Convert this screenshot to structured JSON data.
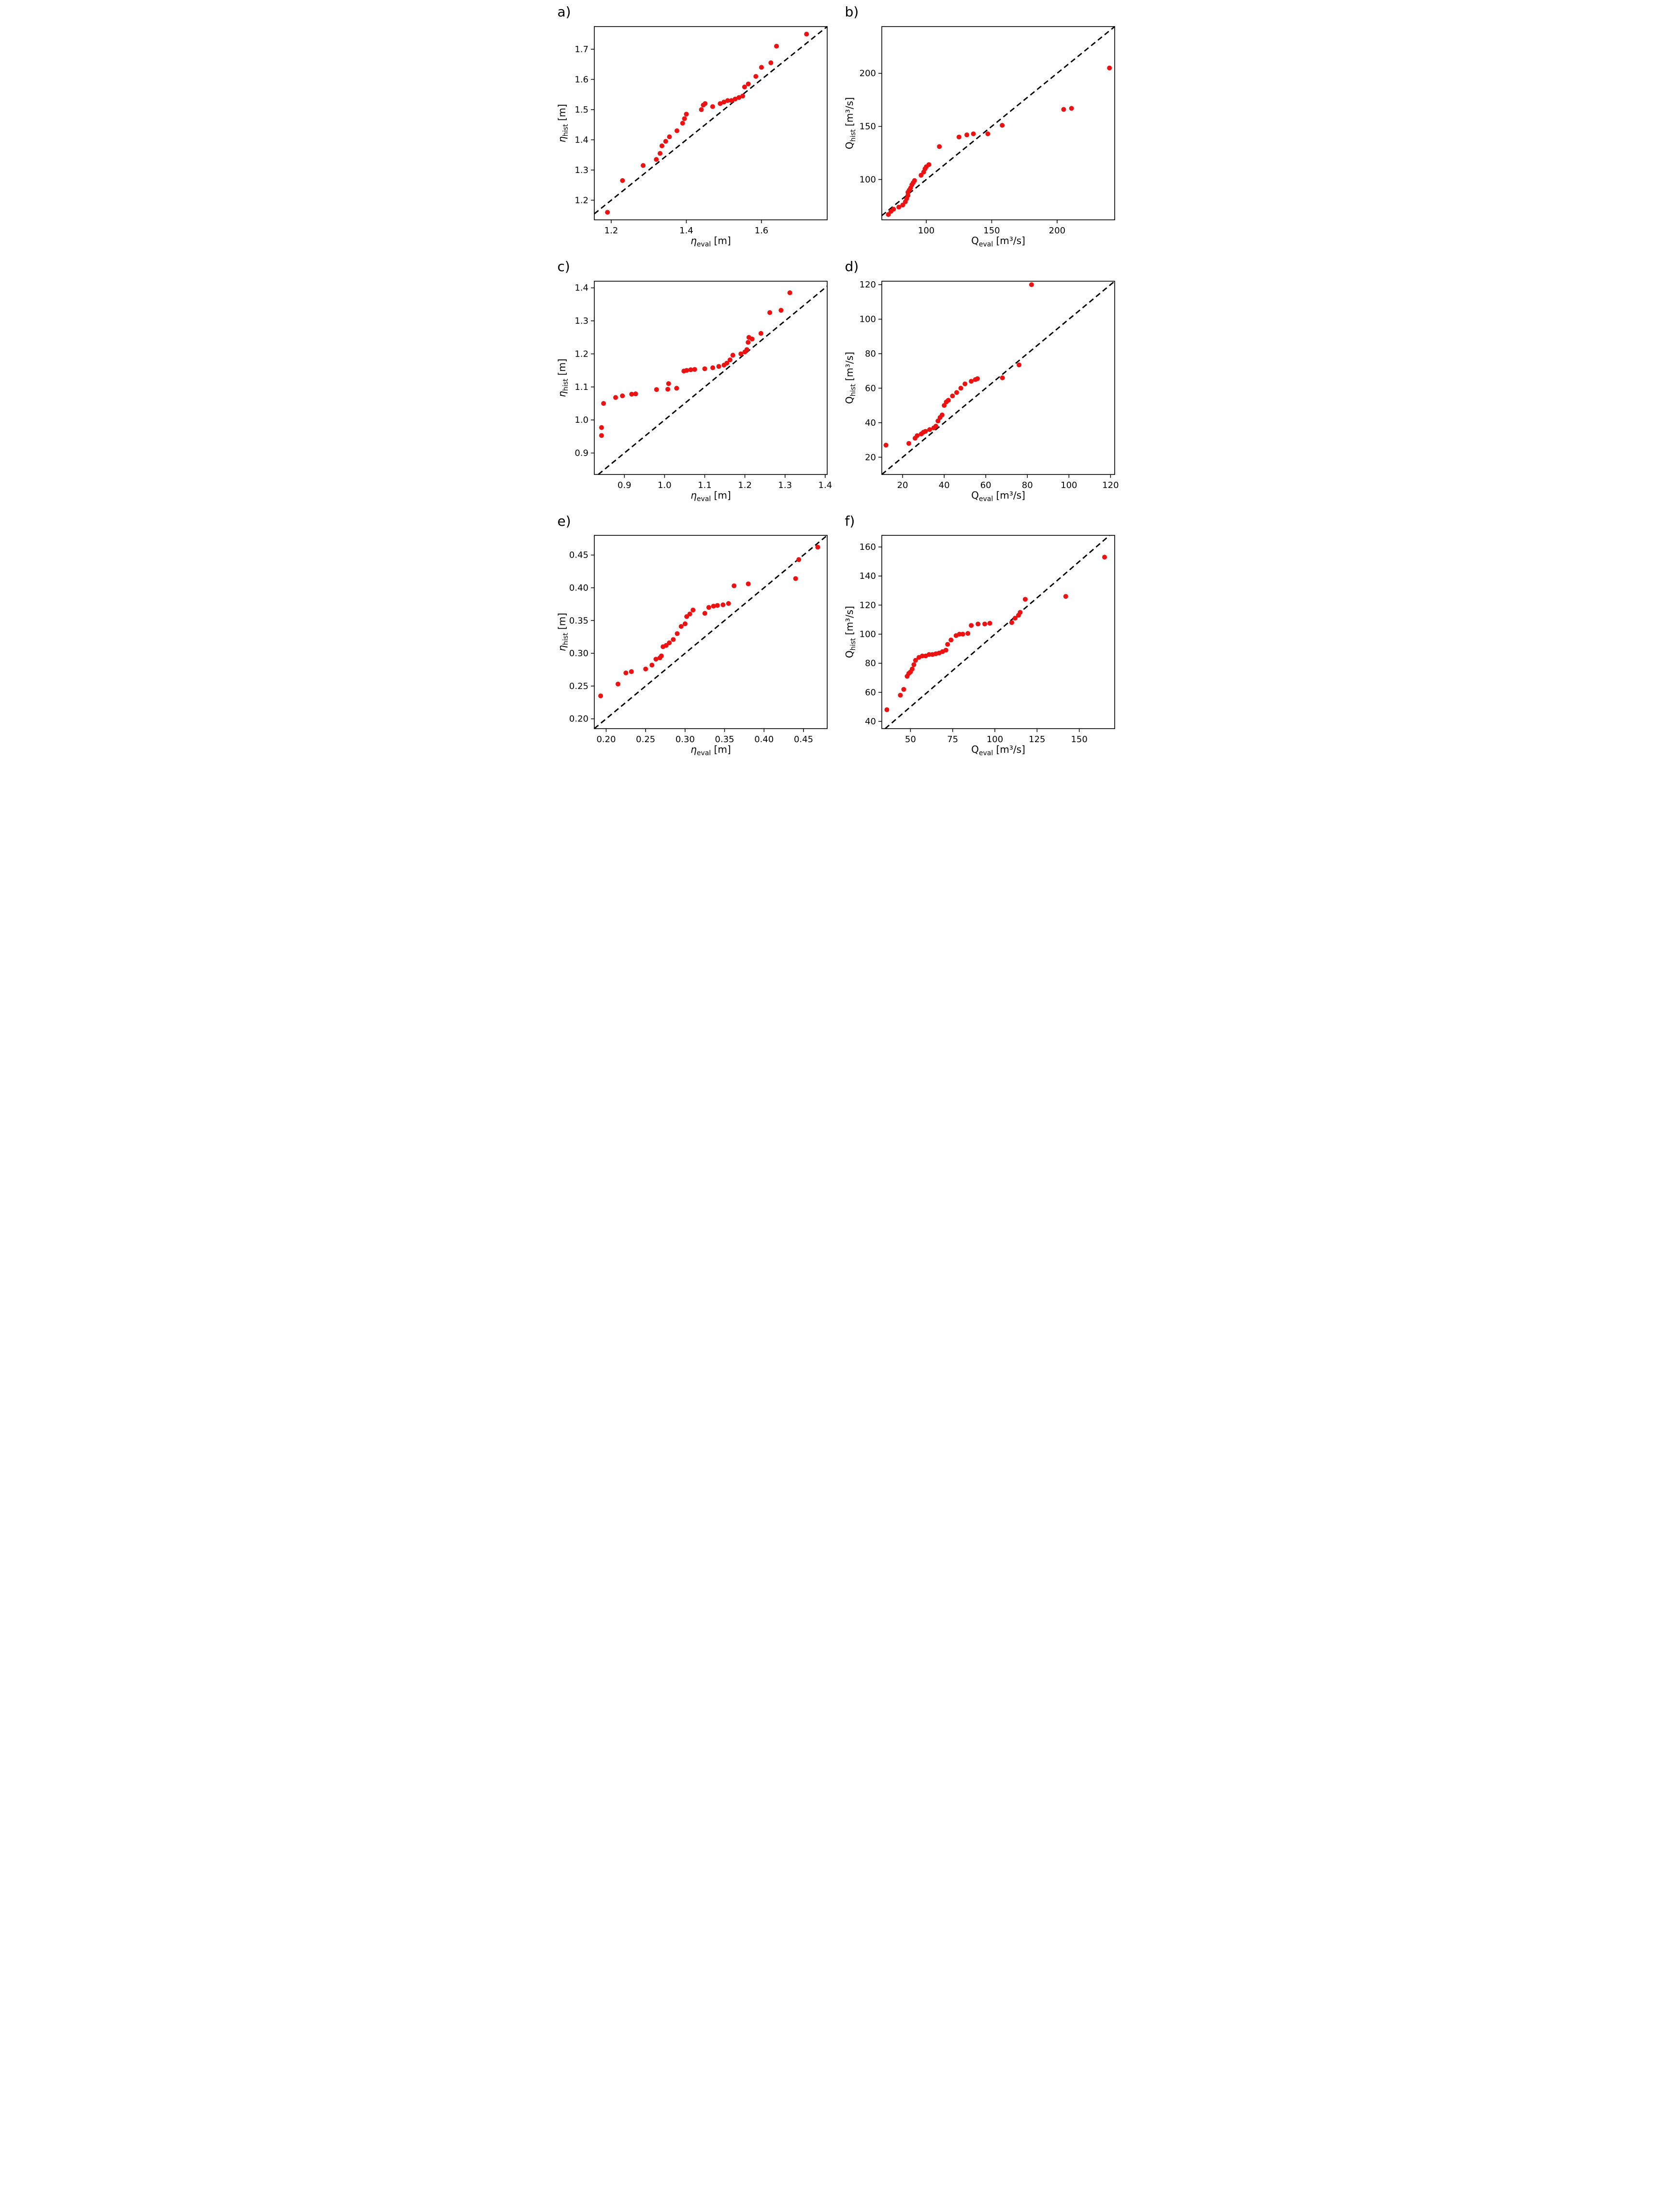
{
  "figure": {
    "background": "#ffffff",
    "point_color": "#ee1111",
    "line_color": "#000000"
  },
  "chart_data": [
    {
      "id": "a",
      "type": "scatter",
      "panel_label": "a)",
      "xlabel": {
        "var": "η",
        "var_italic": true,
        "sub": "eval",
        "unit": "[m]"
      },
      "ylabel": {
        "var": "η",
        "var_italic": true,
        "sub": "hist",
        "unit": "[m]"
      },
      "xlim": [
        1.155,
        1.775
      ],
      "ylim": [
        1.135,
        1.775
      ],
      "xtick_vals": [
        1.2,
        1.4,
        1.6
      ],
      "xtick_labels": [
        "1.2",
        "1.4",
        "1.6"
      ],
      "ytick_vals": [
        1.2,
        1.3,
        1.4,
        1.5,
        1.6,
        1.7
      ],
      "ytick_labels": [
        "1.2",
        "1.3",
        "1.4",
        "1.5",
        "1.6",
        "1.7"
      ],
      "identity_line": true,
      "points": [
        [
          1.19,
          1.16
        ],
        [
          1.23,
          1.265
        ],
        [
          1.285,
          1.315
        ],
        [
          1.32,
          1.335
        ],
        [
          1.33,
          1.355
        ],
        [
          1.335,
          1.38
        ],
        [
          1.345,
          1.395
        ],
        [
          1.355,
          1.41
        ],
        [
          1.375,
          1.43
        ],
        [
          1.39,
          1.455
        ],
        [
          1.395,
          1.47
        ],
        [
          1.4,
          1.485
        ],
        [
          1.44,
          1.5
        ],
        [
          1.445,
          1.515
        ],
        [
          1.45,
          1.52
        ],
        [
          1.47,
          1.51
        ],
        [
          1.49,
          1.52
        ],
        [
          1.5,
          1.525
        ],
        [
          1.51,
          1.53
        ],
        [
          1.52,
          1.53
        ],
        [
          1.53,
          1.535
        ],
        [
          1.54,
          1.54
        ],
        [
          1.55,
          1.545
        ],
        [
          1.555,
          1.575
        ],
        [
          1.565,
          1.585
        ],
        [
          1.585,
          1.61
        ],
        [
          1.6,
          1.64
        ],
        [
          1.625,
          1.655
        ],
        [
          1.64,
          1.71
        ],
        [
          1.72,
          1.75
        ]
      ]
    },
    {
      "id": "b",
      "type": "scatter",
      "panel_label": "b)",
      "xlabel": {
        "var": "Q",
        "var_italic": false,
        "sub": "eval",
        "unit": "[m³/s]"
      },
      "ylabel": {
        "var": "Q",
        "var_italic": false,
        "sub": "hist",
        "unit": "[m³/s]"
      },
      "xlim": [
        66,
        244
      ],
      "ylim": [
        62,
        244
      ],
      "xtick_vals": [
        100,
        150,
        200
      ],
      "xtick_labels": [
        "100",
        "150",
        "200"
      ],
      "ytick_vals": [
        100,
        150,
        200
      ],
      "ytick_labels": [
        "100",
        "150",
        "200"
      ],
      "identity_line": true,
      "points": [
        [
          71,
          67
        ],
        [
          73,
          70
        ],
        [
          75,
          72
        ],
        [
          79,
          74
        ],
        [
          82,
          76
        ],
        [
          84,
          79
        ],
        [
          85,
          82
        ],
        [
          86,
          85
        ],
        [
          86,
          88
        ],
        [
          87,
          90
        ],
        [
          88,
          92
        ],
        [
          89,
          95
        ],
        [
          90,
          97
        ],
        [
          91,
          99
        ],
        [
          96,
          104
        ],
        [
          98,
          107
        ],
        [
          99,
          110
        ],
        [
          100,
          112
        ],
        [
          102,
          114
        ],
        [
          110,
          131
        ],
        [
          125,
          140
        ],
        [
          131,
          142
        ],
        [
          136,
          143
        ],
        [
          147,
          143
        ],
        [
          158,
          151
        ],
        [
          205,
          166
        ],
        [
          211,
          167
        ],
        [
          240,
          205
        ]
      ]
    },
    {
      "id": "c",
      "type": "scatter",
      "panel_label": "c)",
      "xlabel": {
        "var": "η",
        "var_italic": true,
        "sub": "eval",
        "unit": "[m]"
      },
      "ylabel": {
        "var": "η",
        "var_italic": true,
        "sub": "hist",
        "unit": "[m]"
      },
      "xlim": [
        0.825,
        1.405
      ],
      "ylim": [
        0.835,
        1.42
      ],
      "xtick_vals": [
        0.9,
        1.0,
        1.1,
        1.2,
        1.3,
        1.4
      ],
      "xtick_labels": [
        "0.9",
        "1.0",
        "1.1",
        "1.2",
        "1.3",
        "1.4"
      ],
      "ytick_vals": [
        0.9,
        1.0,
        1.1,
        1.2,
        1.3,
        1.4
      ],
      "ytick_labels": [
        "0.9",
        "1.0",
        "1.1",
        "1.2",
        "1.3",
        "1.4"
      ],
      "identity_line": true,
      "points": [
        [
          0.843,
          0.953
        ],
        [
          0.843,
          0.977
        ],
        [
          0.848,
          1.05
        ],
        [
          0.878,
          1.068
        ],
        [
          0.895,
          1.073
        ],
        [
          0.918,
          1.078
        ],
        [
          0.928,
          1.079
        ],
        [
          0.98,
          1.092
        ],
        [
          1.008,
          1.093
        ],
        [
          1.01,
          1.11
        ],
        [
          1.03,
          1.096
        ],
        [
          1.048,
          1.148
        ],
        [
          1.055,
          1.15
        ],
        [
          1.065,
          1.152
        ],
        [
          1.075,
          1.153
        ],
        [
          1.1,
          1.155
        ],
        [
          1.12,
          1.158
        ],
        [
          1.135,
          1.162
        ],
        [
          1.148,
          1.166
        ],
        [
          1.155,
          1.172
        ],
        [
          1.163,
          1.182
        ],
        [
          1.17,
          1.196
        ],
        [
          1.19,
          1.2
        ],
        [
          1.2,
          1.206
        ],
        [
          1.205,
          1.213
        ],
        [
          1.208,
          1.235
        ],
        [
          1.21,
          1.25
        ],
        [
          1.218,
          1.245
        ],
        [
          1.24,
          1.262
        ],
        [
          1.262,
          1.325
        ],
        [
          1.29,
          1.332
        ],
        [
          1.312,
          1.385
        ]
      ]
    },
    {
      "id": "d",
      "type": "scatter",
      "panel_label": "d)",
      "xlabel": {
        "var": "Q",
        "var_italic": false,
        "sub": "eval",
        "unit": "[m³/s]"
      },
      "ylabel": {
        "var": "Q",
        "var_italic": false,
        "sub": "hist",
        "unit": "[m³/s]"
      },
      "xlim": [
        10,
        122
      ],
      "ylim": [
        10,
        122
      ],
      "xtick_vals": [
        20,
        40,
        60,
        80,
        100,
        120
      ],
      "xtick_labels": [
        "20",
        "40",
        "60",
        "80",
        "100",
        "120"
      ],
      "ytick_vals": [
        20,
        40,
        60,
        80,
        100,
        120
      ],
      "ytick_labels": [
        "20",
        "40",
        "60",
        "80",
        "100",
        "120"
      ],
      "identity_line": true,
      "points": [
        [
          12,
          27
        ],
        [
          23,
          28
        ],
        [
          26,
          31
        ],
        [
          27,
          32.5
        ],
        [
          29,
          33.5
        ],
        [
          30,
          34.5
        ],
        [
          31,
          35
        ],
        [
          33,
          36
        ],
        [
          35,
          37
        ],
        [
          36,
          38
        ],
        [
          37,
          41
        ],
        [
          38,
          43
        ],
        [
          39,
          44.5
        ],
        [
          40,
          50
        ],
        [
          41,
          52
        ],
        [
          42,
          53
        ],
        [
          44,
          55.5
        ],
        [
          46,
          57.5
        ],
        [
          48,
          60
        ],
        [
          50,
          62.5
        ],
        [
          53,
          64
        ],
        [
          55,
          65
        ],
        [
          56,
          65.5
        ],
        [
          68,
          66
        ],
        [
          76,
          73.5
        ],
        [
          82,
          120
        ]
      ]
    },
    {
      "id": "e",
      "type": "scatter",
      "panel_label": "e)",
      "xlabel": {
        "var": "η",
        "var_italic": true,
        "sub": "eval",
        "unit": "[m]"
      },
      "ylabel": {
        "var": "η",
        "var_italic": true,
        "sub": "hist",
        "unit": "[m]"
      },
      "xlim": [
        0.185,
        0.48
      ],
      "ylim": [
        0.185,
        0.48
      ],
      "xtick_vals": [
        0.2,
        0.25,
        0.3,
        0.35,
        0.4,
        0.45
      ],
      "xtick_labels": [
        "0.20",
        "0.25",
        "0.30",
        "0.35",
        "0.40",
        "0.45"
      ],
      "ytick_vals": [
        0.2,
        0.25,
        0.3,
        0.35,
        0.4,
        0.45
      ],
      "ytick_labels": [
        "0.20",
        "0.25",
        "0.30",
        "0.35",
        "0.40",
        "0.45"
      ],
      "identity_line": true,
      "points": [
        [
          0.193,
          0.235
        ],
        [
          0.215,
          0.253
        ],
        [
          0.225,
          0.27
        ],
        [
          0.232,
          0.272
        ],
        [
          0.25,
          0.276
        ],
        [
          0.258,
          0.282
        ],
        [
          0.263,
          0.291
        ],
        [
          0.268,
          0.293
        ],
        [
          0.27,
          0.296
        ],
        [
          0.272,
          0.31
        ],
        [
          0.276,
          0.312
        ],
        [
          0.28,
          0.316
        ],
        [
          0.285,
          0.321
        ],
        [
          0.29,
          0.33
        ],
        [
          0.295,
          0.341
        ],
        [
          0.3,
          0.345
        ],
        [
          0.302,
          0.356
        ],
        [
          0.306,
          0.36
        ],
        [
          0.31,
          0.366
        ],
        [
          0.325,
          0.361
        ],
        [
          0.33,
          0.37
        ],
        [
          0.336,
          0.372
        ],
        [
          0.341,
          0.373
        ],
        [
          0.348,
          0.374
        ],
        [
          0.355,
          0.376
        ],
        [
          0.362,
          0.403
        ],
        [
          0.38,
          0.406
        ],
        [
          0.44,
          0.414
        ],
        [
          0.444,
          0.443
        ],
        [
          0.468,
          0.462
        ]
      ]
    },
    {
      "id": "f",
      "type": "scatter",
      "panel_label": "f)",
      "xlabel": {
        "var": "Q",
        "var_italic": false,
        "sub": "eval",
        "unit": "[m³/s]"
      },
      "ylabel": {
        "var": "Q",
        "var_italic": false,
        "sub": "hist",
        "unit": "[m³/s]"
      },
      "xlim": [
        33,
        171
      ],
      "ylim": [
        35,
        168
      ],
      "xtick_vals": [
        50,
        75,
        100,
        125,
        150
      ],
      "xtick_labels": [
        "50",
        "75",
        "100",
        "125",
        "150"
      ],
      "ytick_vals": [
        40,
        60,
        80,
        100,
        120,
        140,
        160
      ],
      "ytick_labels": [
        "40",
        "60",
        "80",
        "100",
        "120",
        "140",
        "160"
      ],
      "identity_line": true,
      "points": [
        [
          36,
          48
        ],
        [
          44,
          58
        ],
        [
          46,
          62
        ],
        [
          48,
          71
        ],
        [
          49,
          73
        ],
        [
          50,
          74
        ],
        [
          51,
          76
        ],
        [
          52,
          79
        ],
        [
          53,
          82
        ],
        [
          55,
          84
        ],
        [
          57,
          85
        ],
        [
          59,
          85
        ],
        [
          61,
          86
        ],
        [
          63,
          86
        ],
        [
          65,
          86.5
        ],
        [
          67,
          87
        ],
        [
          69,
          88
        ],
        [
          71,
          89
        ],
        [
          72,
          93
        ],
        [
          74,
          96
        ],
        [
          77,
          99
        ],
        [
          79,
          100
        ],
        [
          81,
          100
        ],
        [
          84,
          100.5
        ],
        [
          86,
          106
        ],
        [
          90,
          107
        ],
        [
          94,
          107
        ],
        [
          97,
          107.5
        ],
        [
          110,
          108
        ],
        [
          112,
          111
        ],
        [
          114,
          113
        ],
        [
          115,
          115
        ],
        [
          118,
          124
        ],
        [
          142,
          126
        ],
        [
          165,
          153
        ]
      ]
    }
  ]
}
